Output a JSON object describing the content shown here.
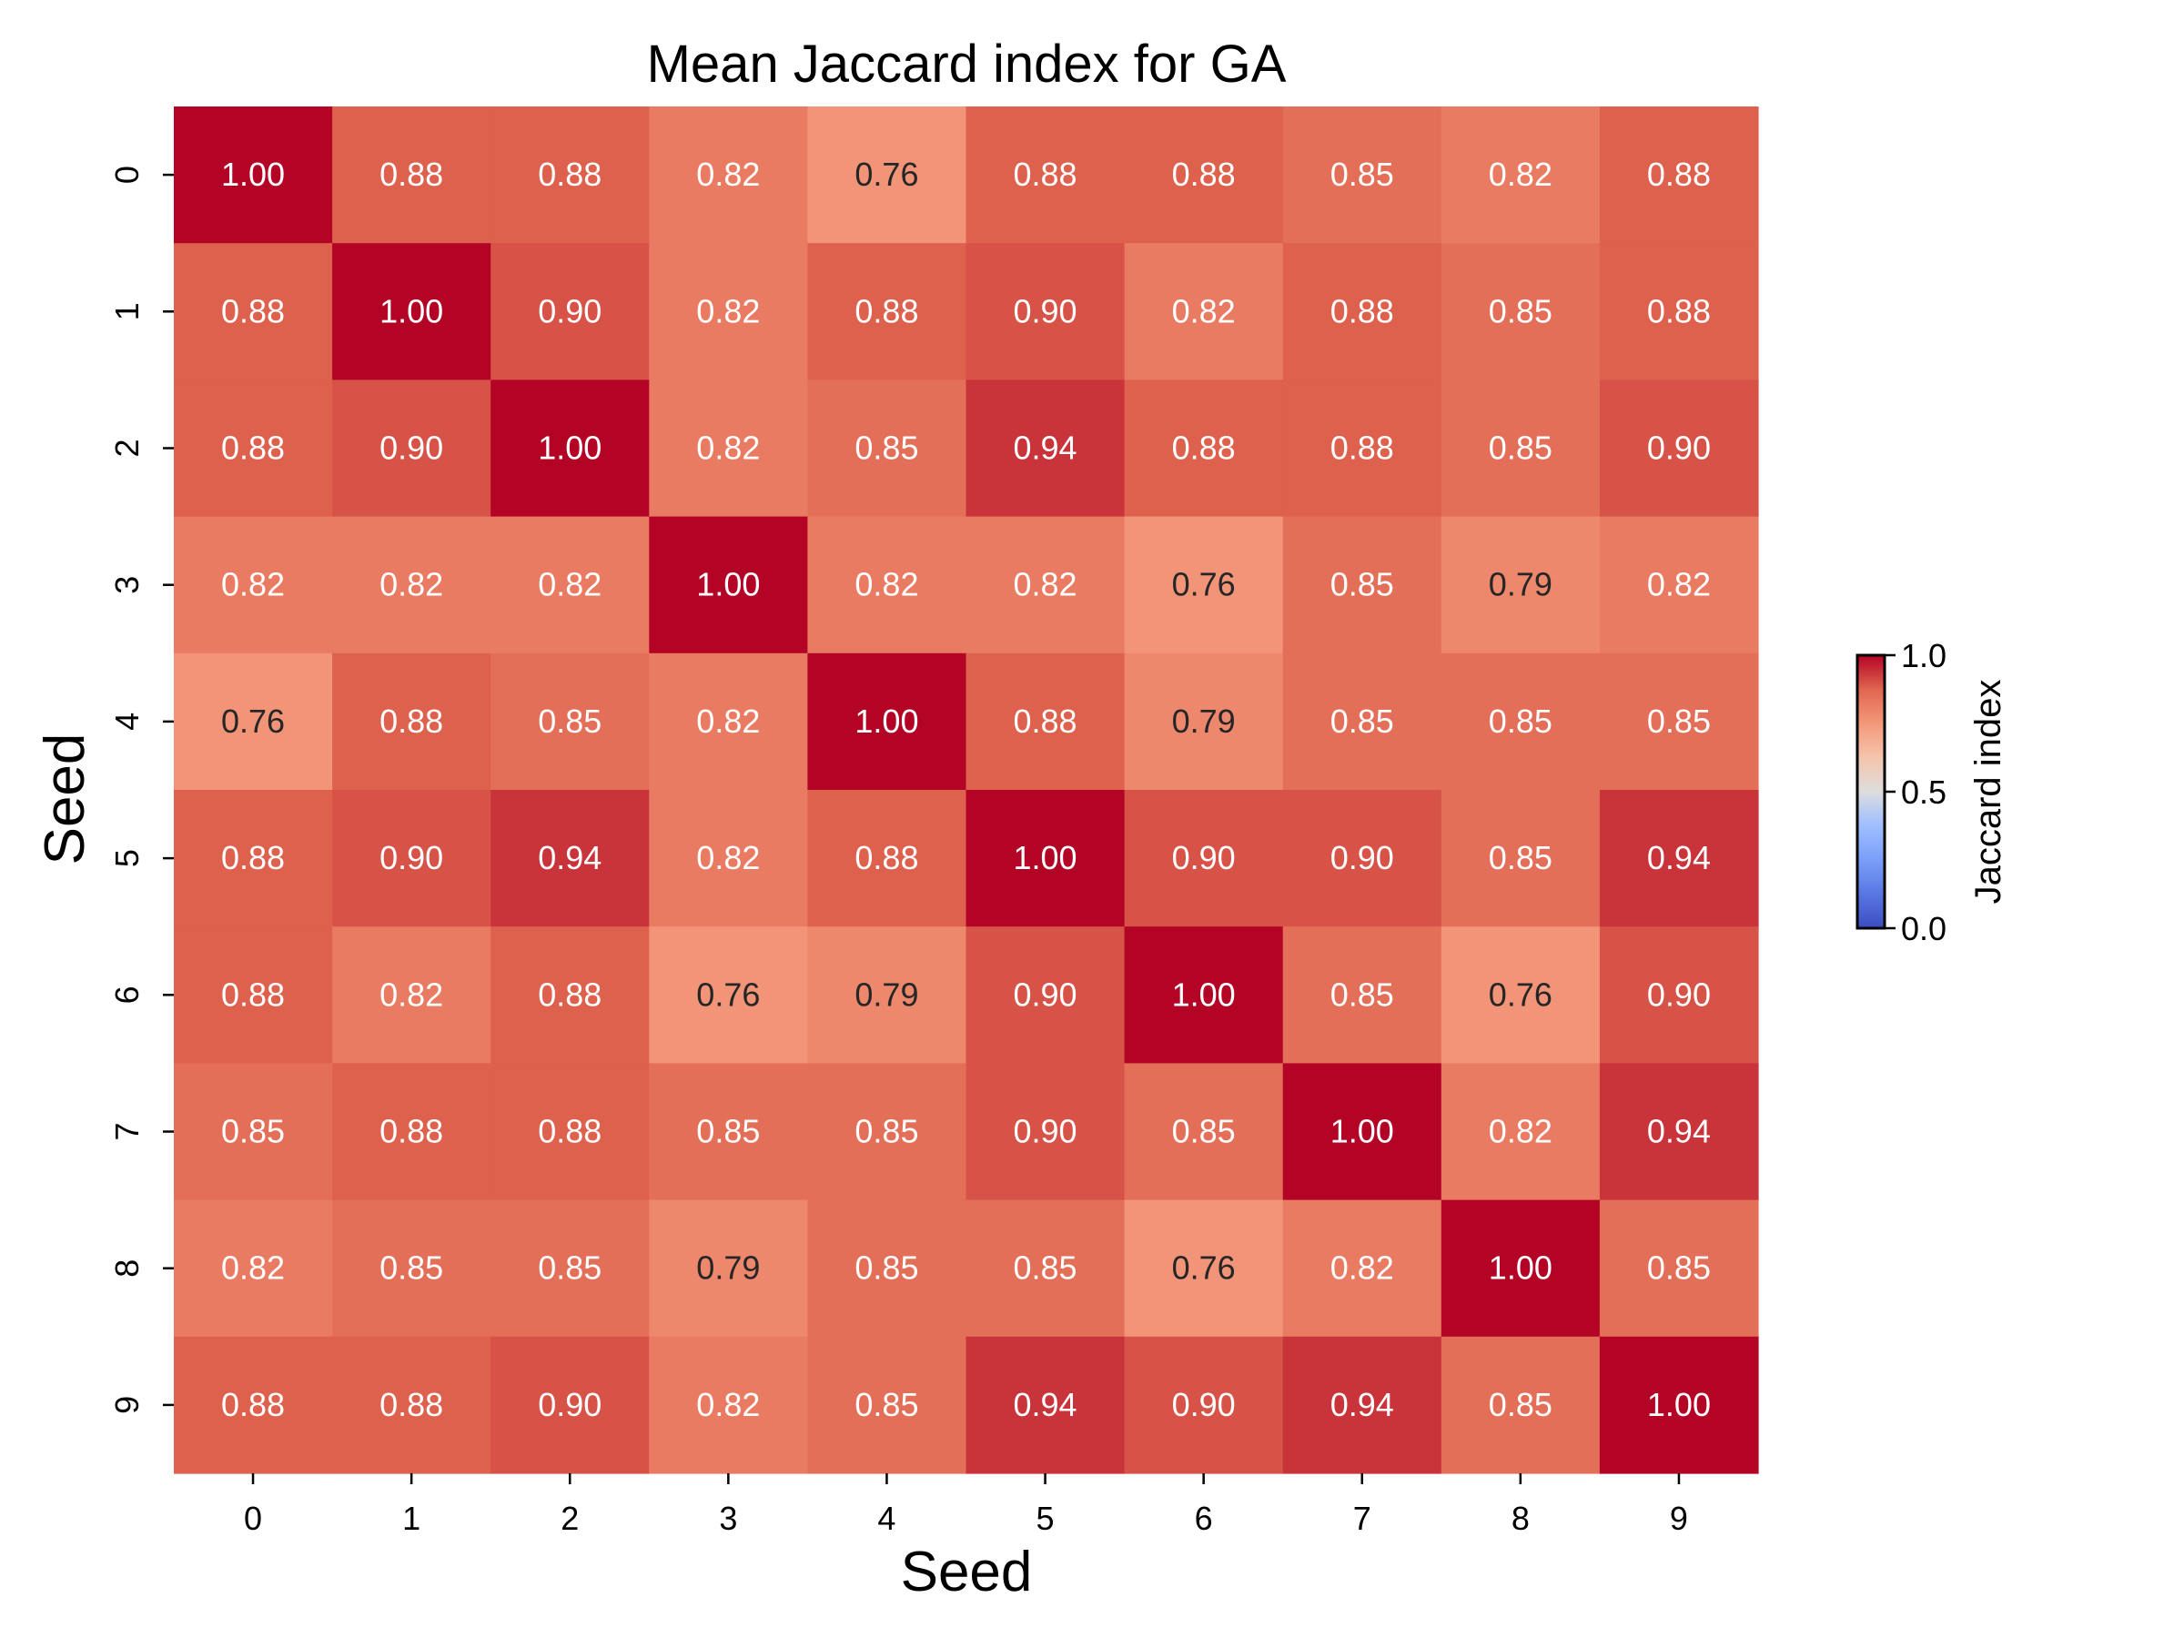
{
  "chart_data": {
    "type": "heatmap",
    "title": "Mean Jaccard index for GA",
    "xlabel": "Seed",
    "ylabel": "Seed",
    "x_categories": [
      "0",
      "1",
      "2",
      "3",
      "4",
      "5",
      "6",
      "7",
      "8",
      "9"
    ],
    "y_categories": [
      "0",
      "1",
      "2",
      "3",
      "4",
      "5",
      "6",
      "7",
      "8",
      "9"
    ],
    "values": [
      [
        1.0,
        0.88,
        0.88,
        0.82,
        0.76,
        0.88,
        0.88,
        0.85,
        0.82,
        0.88
      ],
      [
        0.88,
        1.0,
        0.9,
        0.82,
        0.88,
        0.9,
        0.82,
        0.88,
        0.85,
        0.88
      ],
      [
        0.88,
        0.9,
        1.0,
        0.82,
        0.85,
        0.94,
        0.88,
        0.88,
        0.85,
        0.9
      ],
      [
        0.82,
        0.82,
        0.82,
        1.0,
        0.82,
        0.82,
        0.76,
        0.85,
        0.79,
        0.82
      ],
      [
        0.76,
        0.88,
        0.85,
        0.82,
        1.0,
        0.88,
        0.79,
        0.85,
        0.85,
        0.85
      ],
      [
        0.88,
        0.9,
        0.94,
        0.82,
        0.88,
        1.0,
        0.9,
        0.9,
        0.85,
        0.94
      ],
      [
        0.88,
        0.82,
        0.88,
        0.76,
        0.79,
        0.9,
        1.0,
        0.85,
        0.76,
        0.9
      ],
      [
        0.85,
        0.88,
        0.88,
        0.85,
        0.85,
        0.9,
        0.85,
        1.0,
        0.82,
        0.94
      ],
      [
        0.82,
        0.85,
        0.85,
        0.79,
        0.85,
        0.85,
        0.76,
        0.82,
        1.0,
        0.85
      ],
      [
        0.88,
        0.88,
        0.9,
        0.82,
        0.85,
        0.94,
        0.9,
        0.94,
        0.85,
        1.0
      ]
    ],
    "colormap": "coolwarm",
    "vmin": 0.0,
    "vmax": 1.0,
    "colorbar": {
      "label": "Jaccard index",
      "ticks": [
        "0.0",
        "0.5",
        "1.0"
      ]
    },
    "value_format": "2 decimals"
  }
}
